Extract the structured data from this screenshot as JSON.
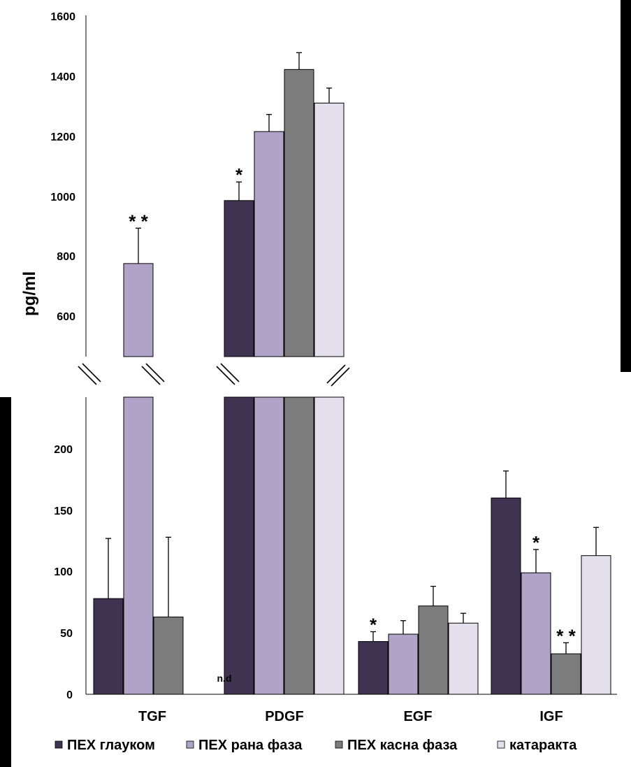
{
  "chart_data": {
    "type": "bar",
    "ylabel": "pg/ml",
    "categories": [
      "TGF",
      "PDGF",
      "EGF",
      "IGF"
    ],
    "axis_break": {
      "lower_range": [
        0,
        240
      ],
      "upper_range": [
        500,
        1600
      ]
    },
    "upper_ticks": [
      "1600",
      "1400",
      "1200",
      "1000",
      "800",
      "600"
    ],
    "lower_ticks": [
      "200",
      "150",
      "100",
      "50",
      "0"
    ],
    "series": [
      {
        "name": "ПЕХ глауком",
        "color": "#3f3352",
        "values": [
          78,
          985,
          43,
          160
        ],
        "errors": [
          49,
          62,
          8,
          22
        ]
      },
      {
        "name": "ПЕХ рана фаза",
        "color": "#b1a2c8",
        "values": [
          775,
          1215,
          49,
          99
        ],
        "errors": [
          118,
          57,
          11,
          19
        ]
      },
      {
        "name": "ПЕХ касна фаза",
        "color": "#7c7c7c",
        "values": [
          63,
          1422,
          72,
          33
        ],
        "errors": [
          65,
          56,
          16,
          9
        ]
      },
      {
        "name": "катаракта",
        "color": "#e4dfec",
        "values": [
          null,
          1310,
          58,
          113
        ],
        "errors": [
          null,
          50,
          8,
          23
        ]
      }
    ],
    "annotations": [
      {
        "text": "* *",
        "category": "TGF",
        "series": 1
      },
      {
        "text": "*",
        "category": "PDGF",
        "series": 0
      },
      {
        "text": "*",
        "category": "EGF",
        "series": 0
      },
      {
        "text": "*",
        "category": "IGF",
        "series": 1
      },
      {
        "text": "* *",
        "category": "IGF",
        "series": 2
      },
      {
        "text": "n.d",
        "category": "PDGF",
        "series": 0
      }
    ]
  }
}
